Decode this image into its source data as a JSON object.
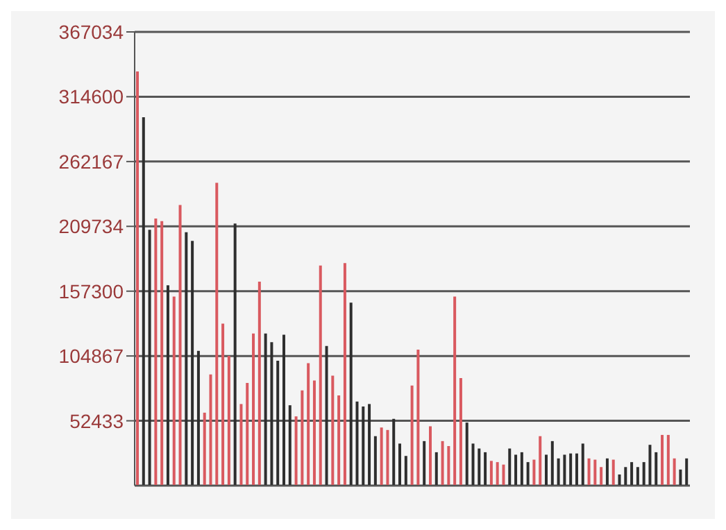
{
  "chart_data": {
    "type": "bar",
    "categories": [
      null,
      null,
      null,
      null,
      null,
      null,
      null,
      null,
      null,
      null,
      null,
      null,
      null,
      null,
      null,
      null,
      null,
      null,
      null,
      null,
      null,
      null,
      null,
      null,
      null,
      null,
      null,
      null,
      null,
      null,
      null,
      null,
      null,
      null,
      null,
      null,
      null,
      null,
      null,
      null,
      null,
      null,
      null,
      null,
      null,
      null,
      null,
      null,
      null,
      null,
      null,
      null,
      null,
      null,
      null,
      null,
      null,
      null,
      null,
      null,
      null,
      null,
      null,
      null,
      null,
      null,
      null,
      null,
      null,
      null,
      null,
      null,
      null,
      null,
      null,
      null,
      null,
      null,
      null,
      null,
      null,
      null,
      null,
      null,
      null,
      null,
      null,
      null,
      null,
      null,
      null
    ],
    "values": [
      335000,
      298000,
      207000,
      216000,
      214000,
      162000,
      153000,
      227000,
      205000,
      198000,
      109000,
      59000,
      90000,
      245000,
      131000,
      105000,
      212000,
      66000,
      83000,
      123000,
      165000,
      123000,
      116000,
      101000,
      122000,
      65000,
      56000,
      77000,
      99000,
      85000,
      178000,
      113000,
      89000,
      73000,
      180000,
      148000,
      68000,
      64000,
      66000,
      40000,
      47000,
      45000,
      54000,
      34000,
      24000,
      81000,
      110000,
      36000,
      48000,
      27000,
      36000,
      32000,
      153000,
      87000,
      51000,
      34000,
      30000,
      27000,
      20000,
      19000,
      17000,
      30000,
      25000,
      27000,
      19000,
      21000,
      40000,
      25000,
      36000,
      22000,
      25000,
      26000,
      26000,
      34000,
      22000,
      21000,
      15000,
      22000,
      21000,
      9000,
      15000,
      19000,
      15000,
      19000,
      33000,
      27000,
      41000,
      41000,
      22000,
      13000,
      22000
    ],
    "colors": [
      "#d9595f",
      "#2e2e2e",
      "#2e2e2e",
      "#d9595f",
      "#d9595f",
      "#2e2e2e",
      "#d9595f",
      "#d9595f",
      "#2e2e2e",
      "#2e2e2e",
      "#2e2e2e",
      "#d9595f",
      "#d9595f",
      "#d9595f",
      "#d9595f",
      "#d9595f",
      "#2e2e2e",
      "#d9595f",
      "#d9595f",
      "#d9595f",
      "#d9595f",
      "#2e2e2e",
      "#2e2e2e",
      "#2e2e2e",
      "#2e2e2e",
      "#2e2e2e",
      "#d9595f",
      "#d9595f",
      "#d9595f",
      "#d9595f",
      "#d9595f",
      "#2e2e2e",
      "#d9595f",
      "#d9595f",
      "#d9595f",
      "#2e2e2e",
      "#2e2e2e",
      "#2e2e2e",
      "#2e2e2e",
      "#2e2e2e",
      "#d9595f",
      "#d9595f",
      "#2e2e2e",
      "#2e2e2e",
      "#2e2e2e",
      "#d9595f",
      "#d9595f",
      "#2e2e2e",
      "#d9595f",
      "#2e2e2e",
      "#d9595f",
      "#d9595f",
      "#d9595f",
      "#d9595f",
      "#2e2e2e",
      "#2e2e2e",
      "#2e2e2e",
      "#2e2e2e",
      "#d9595f",
      "#d9595f",
      "#d9595f",
      "#2e2e2e",
      "#2e2e2e",
      "#2e2e2e",
      "#2e2e2e",
      "#d9595f",
      "#d9595f",
      "#2e2e2e",
      "#2e2e2e",
      "#2e2e2e",
      "#2e2e2e",
      "#2e2e2e",
      "#2e2e2e",
      "#2e2e2e",
      "#d9595f",
      "#d9595f",
      "#d9595f",
      "#2e2e2e",
      "#d9595f",
      "#2e2e2e",
      "#2e2e2e",
      "#2e2e2e",
      "#2e2e2e",
      "#2e2e2e",
      "#2e2e2e",
      "#2e2e2e",
      "#d9595f",
      "#d9595f",
      "#d9595f",
      "#2e2e2e",
      "#2e2e2e"
    ],
    "ylim": [
      0,
      367034
    ],
    "yticks": [
      52433,
      104867,
      157300,
      209734,
      262167,
      314600,
      367034
    ],
    "grid": "y",
    "tick_labels": "y"
  }
}
